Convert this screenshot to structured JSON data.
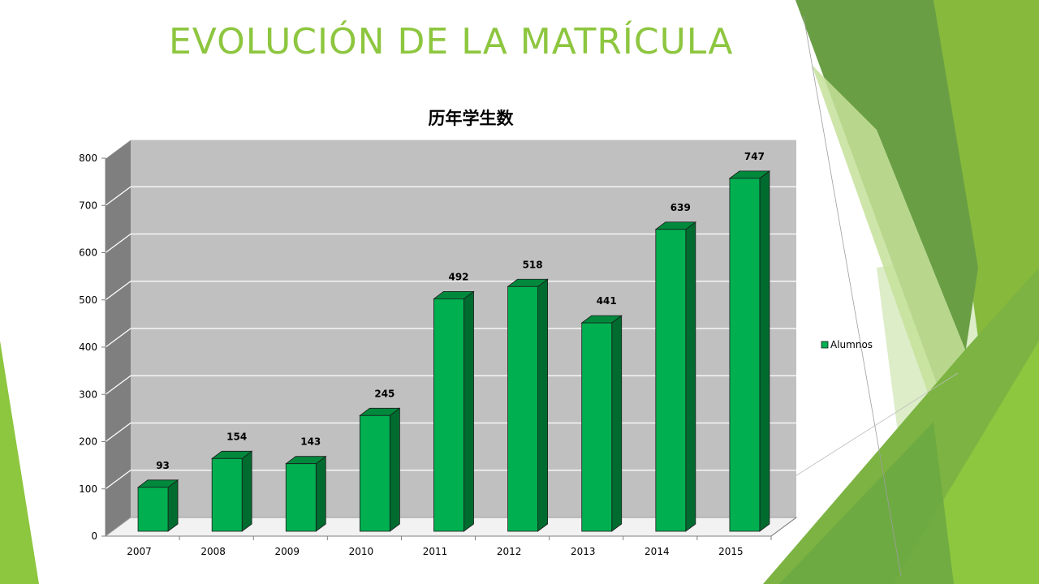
{
  "slide": {
    "title": "EVOLUCIÓN DE LA MATRÍCULA"
  },
  "colors": {
    "title": "#8dc63f",
    "bar_front": "#00b050",
    "bar_side": "#006b2f",
    "bar_top": "#00893c",
    "plot_back": "#c0c0c0",
    "left_wall": "#7f7f7f",
    "floor": "#f2f2f2",
    "gridline": "#ffffff",
    "deco_dark": "#5f9a3a",
    "deco_mid": "#86b93c",
    "deco_light": "#c5e09a"
  },
  "chart_data": {
    "type": "bar",
    "title": "历年学生数",
    "categories": [
      "2007",
      "2008",
      "2009",
      "2010",
      "2011",
      "2012",
      "2013",
      "2014",
      "2015"
    ],
    "series": [
      {
        "name": "Alumnos",
        "values": [
          93,
          154,
          143,
          245,
          492,
          518,
          441,
          639,
          747
        ]
      }
    ],
    "ylim": [
      0,
      800
    ],
    "yticks": [
      0,
      100,
      200,
      300,
      400,
      500,
      600,
      700,
      800
    ],
    "data_labels": true,
    "grid": true,
    "legend_position": "right",
    "style": "3d-column"
  }
}
